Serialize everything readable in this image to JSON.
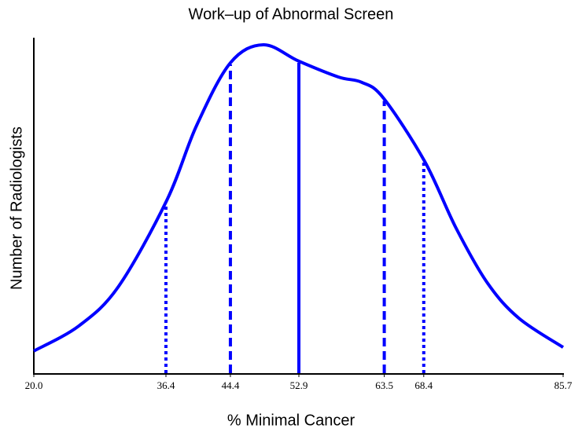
{
  "chart_data": {
    "type": "line",
    "title": "Work–up of Abnormal Screen",
    "x_label": "% Minimal Cancer",
    "y_label": "Number of Radiologists",
    "color": "#0000ff",
    "x": [
      20.0,
      25.6,
      30.5,
      36.5,
      40.2,
      44.4,
      48.5,
      52.9,
      57.8,
      60.7,
      63.4,
      68.5,
      72.4,
      76.3,
      80.2,
      85.7
    ],
    "values": [
      6.6,
      14.1,
      25.8,
      51.5,
      73.8,
      92.5,
      97.9,
      93.0,
      88.3,
      86.7,
      82.0,
      63.2,
      43.3,
      26.9,
      16.4,
      7.7
    ],
    "xlim": [
      20,
      85.7
    ],
    "ylim": [
      0,
      100
    ],
    "xticks": [
      {
        "value": 20,
        "label": "20.0"
      },
      36.4,
      44.4,
      52.9,
      63.5,
      68.4,
      85.7
    ],
    "vlines": [
      {
        "x": 36.4,
        "style": "dotted"
      },
      {
        "x": 44.4,
        "style": "dashed"
      },
      {
        "x": 52.9,
        "style": "solid"
      },
      {
        "x": 63.5,
        "style": "dashed"
      },
      {
        "x": 68.4,
        "style": "dotted"
      }
    ]
  }
}
